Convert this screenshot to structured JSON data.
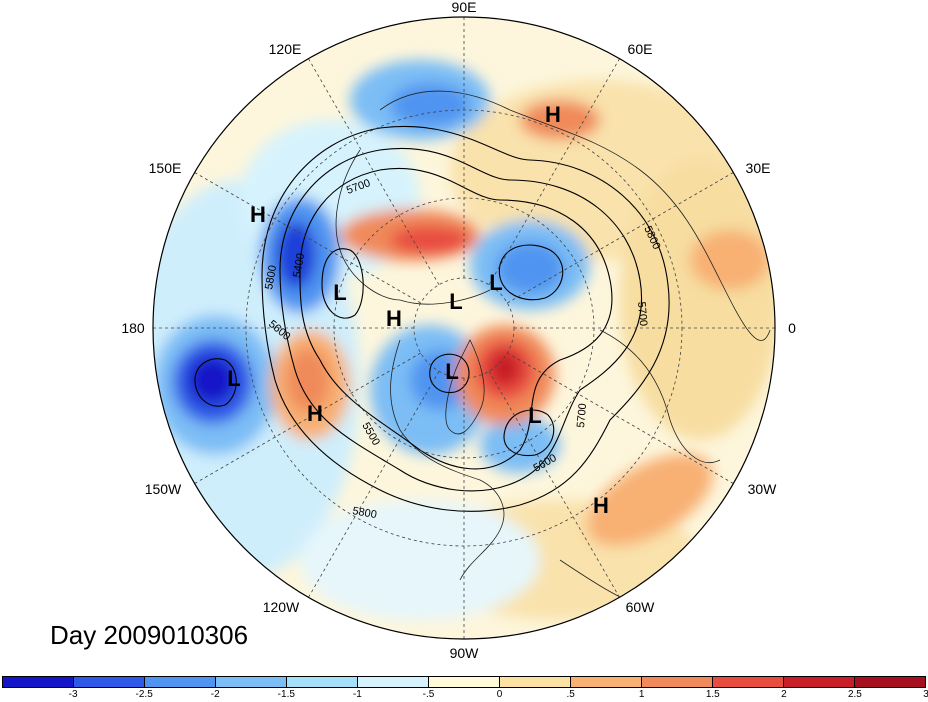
{
  "map": {
    "projection": "polar-stereographic",
    "hemisphere": "northern",
    "variable_shading": "anomaly",
    "contour_levels_labeled": [
      "5400",
      "5500",
      "5600",
      "5700",
      "5800"
    ]
  },
  "longitude_labels": {
    "lon_90e": "90E",
    "lon_60e": "60E",
    "lon_30e": "30E",
    "lon_0": "0",
    "lon_30w": "30W",
    "lon_60w": "60W",
    "lon_90w": "90W",
    "lon_120w": "120W",
    "lon_150w": "150W",
    "lon_180": "180",
    "lon_150e": "150E",
    "lon_120e": "120E"
  },
  "pressure_centers": [
    {
      "kind": "high",
      "label": "H"
    },
    {
      "kind": "high",
      "label": "H"
    },
    {
      "kind": "high",
      "label": "H"
    },
    {
      "kind": "high",
      "label": "H"
    },
    {
      "kind": "high",
      "label": "H"
    },
    {
      "kind": "low",
      "label": "L"
    },
    {
      "kind": "low",
      "label": "L"
    },
    {
      "kind": "low",
      "label": "L"
    },
    {
      "kind": "low",
      "label": "L"
    },
    {
      "kind": "low",
      "label": "L"
    },
    {
      "kind": "low",
      "label": "L"
    }
  ],
  "contour_labels": {
    "c1": "5700",
    "c2": "5400",
    "c3": "5800",
    "c4": "5600",
    "c5": "5500",
    "c6": "5800",
    "c7": "5700",
    "c8": "5600",
    "c9": "5700",
    "c10": "5800"
  },
  "title": "Day 2009010306",
  "colorbar": {
    "colors": [
      "#1414c8",
      "#2e58e6",
      "#4f94f0",
      "#7bbdf5",
      "#a5e0fa",
      "#d6f3fd",
      "#fffbd8",
      "#fbe2a3",
      "#f8b073",
      "#f08a5a",
      "#e84c3f",
      "#c81e28",
      "#a50f1e"
    ],
    "ticks": [
      "-3",
      "-2.5",
      "-2",
      "-1.5",
      "-1",
      "-.5",
      "0",
      ".5",
      "1",
      "1.5",
      "2",
      "2.5",
      "3"
    ]
  }
}
